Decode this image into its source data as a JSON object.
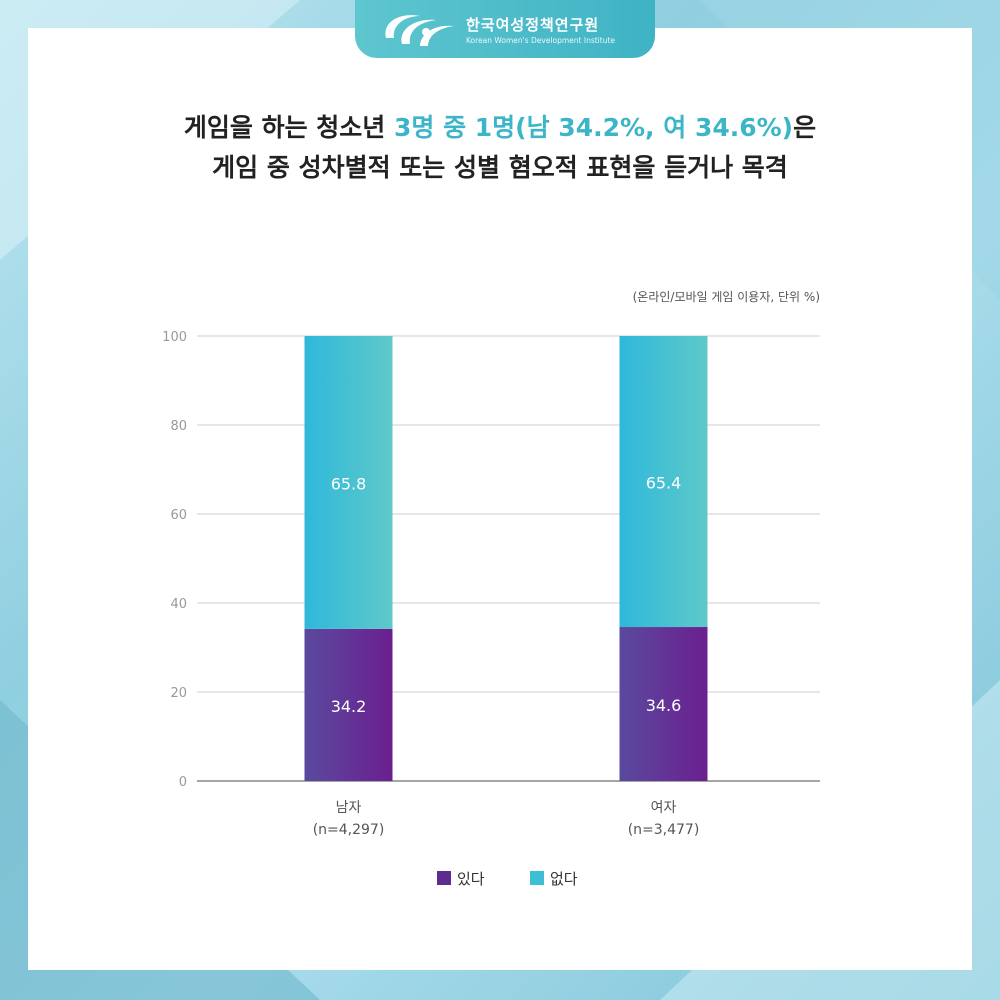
{
  "header": {
    "org_name": "한국여성정책연구원",
    "org_name_en": "Korean Women's Development Institute"
  },
  "headline": {
    "line1_pre": "게임을 하는 청소년 ",
    "line1_accent": "3명 중 1명(남 34.2%, 여 34.6%)",
    "line1_post": "은",
    "line2": "게임 중 성차별적 또는 성별 혐오적 표현을 듣거나 목격"
  },
  "unit_note": "(온라인/모바일 게임 이용자, 단위 %)",
  "colors": {
    "yes": "#6a3d9a",
    "no": "#3cbfd6",
    "accent": "#3cb5c9"
  },
  "chart_data": {
    "type": "bar",
    "stacked": true,
    "categories": [
      "남자",
      "여자"
    ],
    "category_sublabels": [
      "(n=4,297)",
      "(n=3,477)"
    ],
    "series": [
      {
        "name": "있다",
        "values": [
          34.2,
          34.6
        ],
        "labels": [
          "34.2",
          "34.6"
        ]
      },
      {
        "name": "없다",
        "values": [
          65.8,
          65.4
        ],
        "labels": [
          "65.8",
          "65.4"
        ]
      }
    ],
    "ylim": [
      0,
      100
    ],
    "yticks": [
      0,
      20,
      40,
      60,
      80,
      100
    ],
    "grid": true,
    "legend": "bottom"
  }
}
